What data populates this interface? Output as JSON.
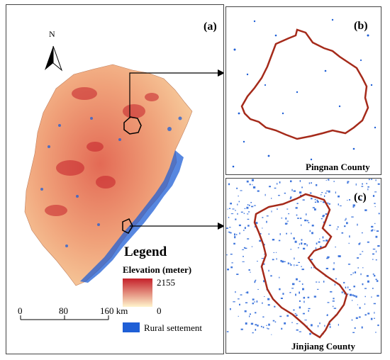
{
  "panel_a": {
    "label": "(a)",
    "north_label": "N",
    "legend": {
      "title": "Legend",
      "elevation_title": "Elevation (meter)",
      "elevation_max": "2155",
      "elevation_min": "0",
      "elevation_colors": [
        "#c5202a",
        "#fff4cc"
      ],
      "rural_label": "Rural settement",
      "rural_color": "#1f5fd6"
    },
    "scale_bar": {
      "ticks": [
        "0",
        "80",
        "160 km"
      ]
    }
  },
  "panel_b": {
    "label": "(b)",
    "county": "Pingnan County",
    "boundary_color": "#a52a1a"
  },
  "panel_c": {
    "label": "(c)",
    "county": "Jinjiang County",
    "boundary_color": "#a52a1a"
  }
}
